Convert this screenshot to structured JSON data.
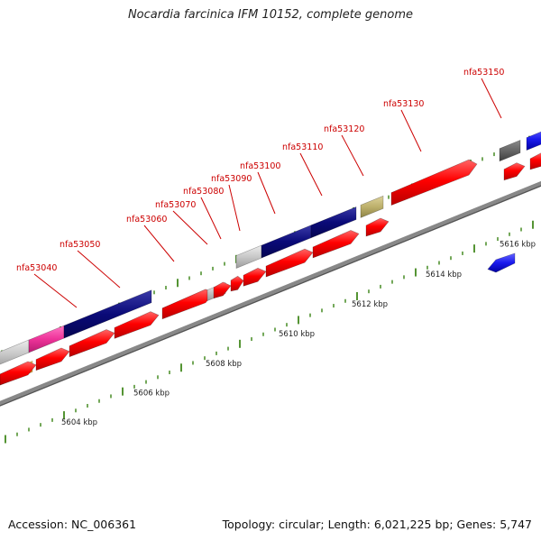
{
  "title": "Nocardia farcinica IFM 10152, complete genome",
  "footer": {
    "accession": "Accession: NC_006361",
    "summary": "Topology: circular; Length: 6,021,225 bp; Genes: 5,747"
  },
  "scale": {
    "ticks": [
      {
        "label": "5604 kbp"
      },
      {
        "label": "5606 kbp"
      },
      {
        "label": "5608 kbp"
      },
      {
        "label": "5610 kbp"
      },
      {
        "label": "5612 kbp"
      },
      {
        "label": "5614 kbp"
      },
      {
        "label": "5616 kbp"
      }
    ]
  },
  "genes": [
    {
      "label": "nfa53040"
    },
    {
      "label": "nfa53050"
    },
    {
      "label": "nfa53060"
    },
    {
      "label": "nfa53070"
    },
    {
      "label": "nfa53080"
    },
    {
      "label": "nfa53090"
    },
    {
      "label": "nfa53100"
    },
    {
      "label": "nfa53110"
    },
    {
      "label": "nfa53120"
    },
    {
      "label": "nfa53130"
    },
    {
      "label": "nfa53150"
    }
  ],
  "colors": {
    "cds_forward": "#ff0000",
    "backbone": "#888888",
    "tick_mark": "#2a7a00",
    "label_text": "#cc0000",
    "callout_line": "#cc0000",
    "navy": "#0a0a78",
    "magenta": "#ee3399",
    "orange": "#f39a1a",
    "silver": "#c8c8c8",
    "olive": "#bdb06c",
    "charcoal": "#666666",
    "blue": "#1a1aee"
  }
}
